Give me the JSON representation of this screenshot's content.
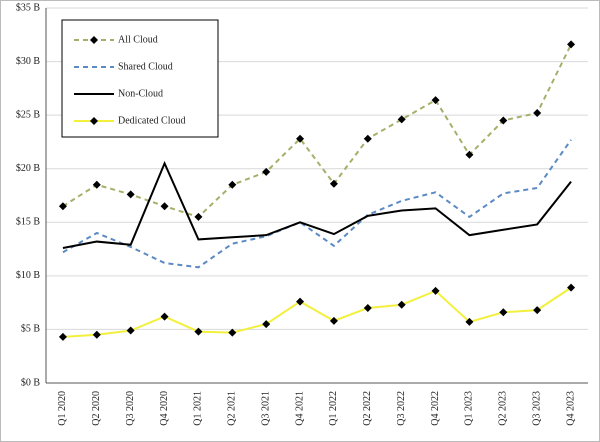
{
  "chart_data": {
    "type": "line",
    "categories": [
      "Q1 2020",
      "Q2 2020",
      "Q3 2020",
      "Q4 2020",
      "Q1 2021",
      "Q2 2021",
      "Q3 2021",
      "Q4 2021",
      "Q1 2022",
      "Q2 2022",
      "Q3 2022",
      "Q4 2022",
      "Q1 2023",
      "Q2 2023",
      "Q3 2023",
      "Q4 2023"
    ],
    "series": [
      {
        "name": "All Cloud",
        "color": "#a4b06a",
        "dashed": true,
        "markers": true,
        "values": [
          16.5,
          18.5,
          17.6,
          16.5,
          15.5,
          18.5,
          19.7,
          22.8,
          18.6,
          22.8,
          24.6,
          26.4,
          21.3,
          24.5,
          25.2,
          31.6
        ]
      },
      {
        "name": "Shared Cloud",
        "color": "#5b8ac4",
        "dashed": true,
        "markers": false,
        "values": [
          12.2,
          14.0,
          12.7,
          11.2,
          10.8,
          13.0,
          13.7,
          15.0,
          12.8,
          15.7,
          17.0,
          17.8,
          15.5,
          17.7,
          18.2,
          22.7
        ]
      },
      {
        "name": "Non-Cloud",
        "color": "#000000",
        "dashed": false,
        "markers": false,
        "values": [
          12.6,
          13.2,
          12.9,
          20.5,
          13.4,
          13.6,
          13.8,
          15.0,
          13.9,
          15.6,
          16.1,
          16.3,
          13.8,
          14.3,
          14.8,
          18.8
        ]
      },
      {
        "name": "Dedicated Cloud",
        "color": "#f2f03c",
        "dashed": false,
        "markers": true,
        "values": [
          4.3,
          4.5,
          4.9,
          6.2,
          4.8,
          4.7,
          5.5,
          7.6,
          5.8,
          7.0,
          7.3,
          8.6,
          5.7,
          6.6,
          6.8,
          8.9
        ]
      }
    ],
    "ylim": [
      0,
      35
    ],
    "yticks": [
      {
        "value": 0,
        "label": "$0 B"
      },
      {
        "value": 5,
        "label": "$5 B"
      },
      {
        "value": 10,
        "label": "$10 B"
      },
      {
        "value": 15,
        "label": "$15 B"
      },
      {
        "value": 20,
        "label": "$20 B"
      },
      {
        "value": 25,
        "label": "$25 B"
      },
      {
        "value": 30,
        "label": "$30 B"
      },
      {
        "value": 35,
        "label": "$35 B"
      }
    ],
    "grid": true,
    "legend": "top-left"
  }
}
